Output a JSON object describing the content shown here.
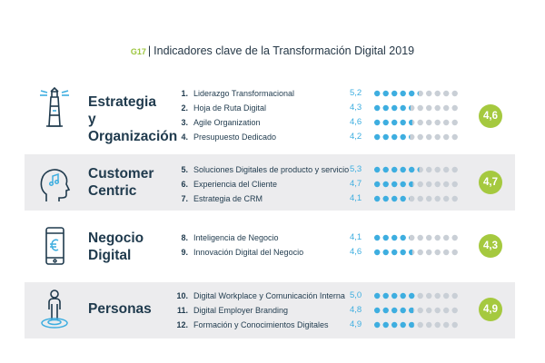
{
  "title": {
    "code": "G17",
    "text": "Indicadores clave de la Transformación Digital 2019"
  },
  "colors": {
    "accent_blue": "#3eaee0",
    "empty_dot": "#c9cfd6",
    "green": "#a5c93f",
    "text_dark": "#1f3a4d"
  },
  "chart_data": {
    "type": "table",
    "scale_max": 10,
    "groups": [
      {
        "name": "Estrategia y Organización",
        "average": "4,6",
        "icon": "lighthouse-icon",
        "items": [
          {
            "num": "1.",
            "label": "Liderazgo Transformacional",
            "value": 5.2,
            "value_text": "5,2"
          },
          {
            "num": "2.",
            "label": "Hoja de Ruta Digital",
            "value": 4.3,
            "value_text": "4,3"
          },
          {
            "num": "3.",
            "label": "Agile Organization",
            "value": 4.6,
            "value_text": "4,6"
          },
          {
            "num": "4.",
            "label": "Presupuesto Dedicado",
            "value": 4.2,
            "value_text": "4,2"
          }
        ]
      },
      {
        "name": "Customer Centric",
        "average": "4,7",
        "icon": "head-music-icon",
        "items": [
          {
            "num": "5.",
            "label": "Soluciones Digitales de producto y servicio",
            "value": 5.3,
            "value_text": "5,3"
          },
          {
            "num": "6.",
            "label": "Experiencia del Cliente",
            "value": 4.7,
            "value_text": "4,7"
          },
          {
            "num": "7.",
            "label": "Estrategia de CRM",
            "value": 4.1,
            "value_text": "4,1"
          }
        ]
      },
      {
        "name": "Negocio Digital",
        "average": "4,3",
        "icon": "smartphone-euro-icon",
        "items": [
          {
            "num": "8.",
            "label": "Inteligencia de Negocio",
            "value": 4.1,
            "value_text": "4,1"
          },
          {
            "num": "9.",
            "label": "Innovación Digital del Negocio",
            "value": 4.6,
            "value_text": "4,6"
          }
        ]
      },
      {
        "name": "Personas",
        "average": "4,9",
        "icon": "person-target-icon",
        "items": [
          {
            "num": "10.",
            "label": "Digital Workplace y Comunicación Interna",
            "value": 5.0,
            "value_text": "5,0"
          },
          {
            "num": "11.",
            "label": "Digital Employer Branding",
            "value": 4.8,
            "value_text": "4,8"
          },
          {
            "num": "12.",
            "label": "Formación y Conocimientos Digitales",
            "value": 4.9,
            "value_text": "4,9"
          }
        ]
      }
    ]
  }
}
